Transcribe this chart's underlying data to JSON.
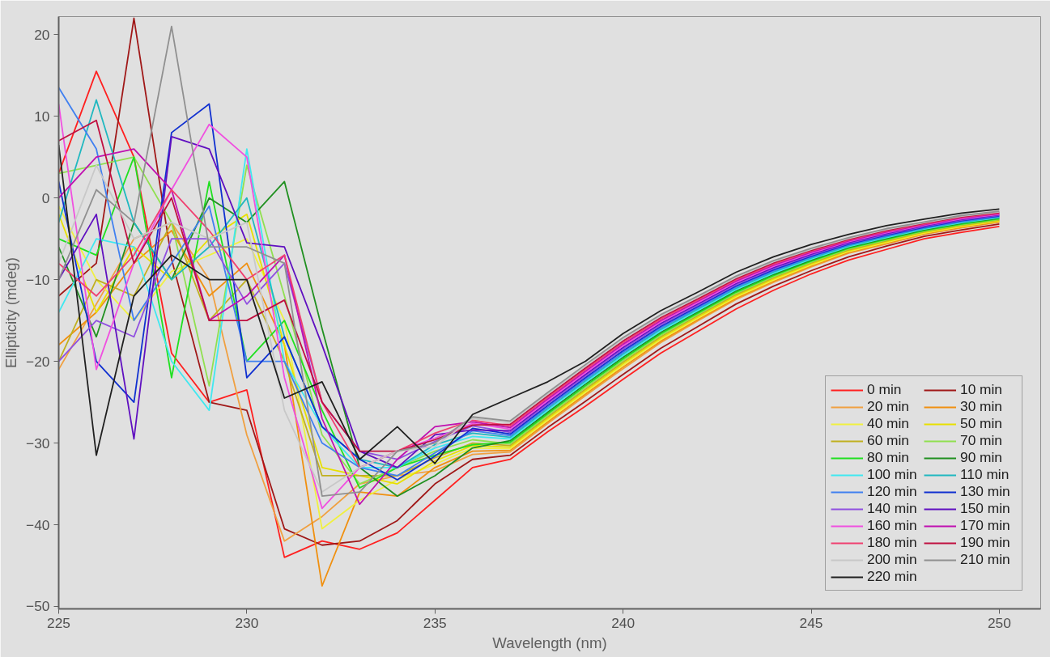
{
  "chart_data": {
    "type": "line",
    "xlabel": "Wavelength (nm)",
    "ylabel": "Ellipticity (mdeg)",
    "x": [
      225,
      226,
      227,
      228,
      229,
      230,
      231,
      232,
      233,
      234,
      235,
      236,
      237,
      238,
      239,
      240,
      241,
      242,
      243,
      244,
      245,
      246,
      247,
      248,
      249,
      250
    ],
    "xlim": [
      225,
      251.1
    ],
    "ylim": [
      -50.3,
      22.2
    ],
    "xticks": [
      225,
      230,
      235,
      240,
      245,
      250
    ],
    "yticks": [
      -50,
      -40,
      -30,
      -20,
      -10,
      0,
      10,
      20
    ],
    "grid": false,
    "legend": "bottom right",
    "line_style": "solid",
    "marker": "none",
    "series": [
      {
        "name": "0 min",
        "color": "#ff2020",
        "values": [
          3,
          15.5,
          5,
          -19,
          -25,
          -23.5,
          -44,
          -42,
          -43,
          -41,
          -37,
          -33,
          -32,
          -28.6,
          -25.5,
          -22.2,
          -19,
          -16.3,
          -13.6,
          -11.3,
          -9.3,
          -7.6,
          -6.3,
          -5,
          -4.2,
          -3.5
        ]
      },
      {
        "name": "10 min",
        "color": "#a01818",
        "values": [
          -12,
          -8,
          22,
          -7.5,
          -25,
          -26,
          -40.5,
          -42.5,
          -42,
          -39.5,
          -35,
          -32,
          -31.5,
          -28.1,
          -24.9,
          -21.6,
          -18.4,
          -15.7,
          -13,
          -10.8,
          -8.9,
          -7.2,
          -5.9,
          -4.7,
          -3.9,
          -3.2
        ]
      },
      {
        "name": "20 min",
        "color": "#f0a040",
        "values": [
          -21,
          -13,
          -5,
          -3,
          -10,
          -29,
          -42,
          -39,
          -35,
          -34,
          -33.4,
          -31.4,
          -31.1,
          -27.6,
          -24.2,
          -20.9,
          -17.71,
          -15.02,
          -12.43,
          -10.33,
          -8.44,
          -6.75,
          -5.65,
          -4.46,
          -3.66,
          -2.97
        ]
      },
      {
        "name": "30 min",
        "color": "#f09010",
        "values": [
          -18,
          -14,
          -8,
          -4,
          -12,
          -8,
          -18,
          -47.5,
          -36,
          -36.5,
          -33,
          -31,
          -30.9,
          -27.4,
          -24,
          -20.7,
          -17.53,
          -14.86,
          -12.28,
          -10.19,
          -8.32,
          -6.65,
          -5.55,
          -4.38,
          -3.58,
          -2.9
        ]
      },
      {
        "name": "40 min",
        "color": "#f0f040",
        "values": [
          -1,
          -10,
          -15,
          -9,
          -7,
          -5,
          -15,
          -40.5,
          -37,
          -34.5,
          -32.6,
          -30.6,
          -30.7,
          -27.2,
          -23.8,
          -20.5,
          -17.35,
          -14.7,
          -12.13,
          -10.05,
          -8.2,
          -6.55,
          -5.45,
          -4.3,
          -3.5,
          -2.83
        ]
      },
      {
        "name": "50 min",
        "color": "#e8e000",
        "values": [
          -2,
          -14,
          -6,
          -10,
          -5,
          -2,
          -18,
          -33,
          -34,
          -35,
          -32.2,
          -30.3,
          -30.5,
          -27,
          -23.6,
          -20.3,
          -17.17,
          -14.54,
          -11.98,
          -9.91,
          -8.08,
          -6.45,
          -5.35,
          -4.22,
          -3.42,
          -2.76
        ]
      },
      {
        "name": "60 min",
        "color": "#c0b020",
        "values": [
          -20,
          -10,
          -12,
          -3,
          -15,
          -10,
          -20,
          -34,
          -34,
          -34,
          -31.8,
          -30,
          -30.3,
          -26.8,
          -23.4,
          -20.1,
          -16.99,
          -14.38,
          -11.83,
          -9.77,
          -7.96,
          -6.35,
          -5.25,
          -4.14,
          -3.34,
          -2.69
        ]
      },
      {
        "name": "70 min",
        "color": "#90e050",
        "values": [
          3,
          4,
          5,
          -3,
          -23,
          4,
          -12,
          -29,
          -35,
          -33,
          -31,
          -29.6,
          -30.1,
          -26.6,
          -23.2,
          -19.9,
          -16.81,
          -14.22,
          -11.68,
          -9.63,
          -7.84,
          -6.25,
          -5.15,
          -4.06,
          -3.26,
          -2.62
        ]
      },
      {
        "name": "80 min",
        "color": "#20e020",
        "values": [
          -5,
          -7,
          5,
          -22,
          2,
          -20,
          -15,
          -26,
          -35.5,
          -33,
          -31.5,
          -30.2,
          -29.9,
          -26.4,
          -23,
          -19.7,
          -16.63,
          -14.06,
          -11.53,
          -9.49,
          -7.72,
          -6.15,
          -5.05,
          -3.98,
          -3.18,
          -2.55
        ]
      },
      {
        "name": "90 min",
        "color": "#209020",
        "values": [
          -6,
          -17,
          -3,
          -10,
          0,
          -3,
          2,
          -16,
          -33,
          -36.5,
          -34,
          -30.6,
          -29.7,
          -26.2,
          -22.8,
          -19.5,
          -16.45,
          -13.9,
          -11.38,
          -9.35,
          -7.6,
          -6.05,
          -4.95,
          -3.9,
          -3.1,
          -2.48
        ]
      },
      {
        "name": "100 min",
        "color": "#40e8f0",
        "values": [
          -14,
          -5,
          -6,
          -20,
          -26,
          6,
          -20,
          -28,
          -33,
          -33,
          -30.6,
          -29.2,
          -29.5,
          -26,
          -22.6,
          -19.3,
          -16.27,
          -13.74,
          -11.23,
          -9.21,
          -7.48,
          -5.95,
          -4.85,
          -3.82,
          -3.02,
          -2.41
        ]
      },
      {
        "name": "110 min",
        "color": "#20b8c0",
        "values": [
          -3,
          12,
          -3,
          -10,
          -6,
          0,
          -17,
          -28,
          -32,
          -33,
          -30.2,
          -28.8,
          -29.3,
          -25.8,
          -22.4,
          -19.1,
          -16.09,
          -13.58,
          -11.08,
          -9.07,
          -7.36,
          -5.85,
          -4.75,
          -3.74,
          -2.94,
          -2.34
        ]
      },
      {
        "name": "120 min",
        "color": "#4080f0",
        "values": [
          13.5,
          6,
          -15,
          -8,
          -1,
          -20,
          -20,
          -30,
          -33,
          -34,
          -31.2,
          -28.5,
          -29.1,
          -25.6,
          -22.2,
          -18.9,
          -15.91,
          -13.42,
          -10.93,
          -8.93,
          -7.24,
          -5.75,
          -4.65,
          -3.66,
          -2.86,
          -2.27
        ]
      },
      {
        "name": "130 min",
        "color": "#1030d0",
        "values": [
          2,
          -20,
          -25,
          8,
          11.5,
          -22,
          -17,
          -28,
          -32,
          -34.5,
          -31.6,
          -28.2,
          -28.9,
          -25.4,
          -22,
          -18.7,
          -15.73,
          -13.26,
          -10.78,
          -8.79,
          -7.12,
          -5.65,
          -4.55,
          -3.58,
          -2.78,
          -2.2
        ]
      },
      {
        "name": "140 min",
        "color": "#9050e0",
        "values": [
          -20,
          -15,
          -17,
          -5,
          -5,
          -13,
          -8,
          -25,
          -31,
          -32,
          -29.8,
          -27.9,
          -28.7,
          -25.2,
          -21.8,
          -18.5,
          -15.55,
          -13.1,
          -10.63,
          -8.65,
          -7,
          -5.55,
          -4.45,
          -3.5,
          -2.7,
          -2.13
        ]
      },
      {
        "name": "150 min",
        "color": "#6010c0",
        "values": [
          -10,
          -2,
          -29.5,
          7.5,
          6,
          -5.5,
          -6,
          -18,
          -31,
          -33,
          -29,
          -28.4,
          -28.5,
          -25,
          -21.6,
          -18.3,
          -15.37,
          -12.94,
          -10.48,
          -8.51,
          -6.88,
          -5.45,
          -4.35,
          -3.42,
          -2.62,
          -2.06
        ]
      },
      {
        "name": "160 min",
        "color": "#f050e0",
        "values": [
          11.5,
          -21,
          -8,
          1,
          9,
          5,
          -22,
          -38,
          -33,
          -31,
          -29.4,
          -27.6,
          -28.3,
          -24.8,
          -21.4,
          -18.1,
          -15.19,
          -12.78,
          -10.33,
          -8.37,
          -6.76,
          -5.35,
          -4.25,
          -3.34,
          -2.54,
          -1.99
        ]
      },
      {
        "name": "170 min",
        "color": "#c010b0",
        "values": [
          0,
          5,
          6,
          1,
          -15,
          -12,
          -7,
          -27,
          -37.5,
          -32,
          -28,
          -27.4,
          -28.1,
          -24.6,
          -21.2,
          -17.9,
          -15.01,
          -12.62,
          -10.18,
          -8.23,
          -6.64,
          -5.25,
          -4.15,
          -3.26,
          -2.46,
          -1.92
        ]
      },
      {
        "name": "180 min",
        "color": "#f04070",
        "values": [
          -8,
          -12,
          -7,
          1,
          -4,
          -10,
          -7,
          -25,
          -33,
          -31,
          -28.8,
          -27.2,
          -27.9,
          -24.4,
          -21,
          -17.7,
          -14.83,
          -12.46,
          -10.03,
          -8.09,
          -6.52,
          -5.15,
          -4.05,
          -3.18,
          -2.38,
          -1.85
        ]
      },
      {
        "name": "190 min",
        "color": "#c01040",
        "values": [
          7,
          9.5,
          -8,
          0,
          -15,
          -15,
          -12.5,
          -25,
          -31,
          -31,
          -29.6,
          -27.8,
          -27.7,
          -24.2,
          -20.8,
          -17.5,
          -14.65,
          -12.3,
          -9.88,
          -7.95,
          -6.4,
          -5.05,
          -3.95,
          -3.1,
          -2.3,
          -1.78
        ]
      },
      {
        "name": "200 min",
        "color": "#c8c8c8",
        "values": [
          -8,
          4,
          -5,
          -3,
          -5,
          -3,
          -26,
          -36,
          -33,
          -31,
          -30.4,
          -27,
          -27.5,
          -24,
          -20.6,
          -17.3,
          -14.47,
          -12.14,
          -9.73,
          -7.81,
          -6.28,
          -4.95,
          -3.85,
          -3.02,
          -2.22,
          -1.71
        ]
      },
      {
        "name": "210 min",
        "color": "#909090",
        "values": [
          -10,
          1,
          -3,
          21,
          -6,
          -6,
          -8,
          -36.5,
          -36,
          -31,
          -30,
          -26.8,
          -27.3,
          -23.8,
          -20.4,
          -17.1,
          -14.29,
          -11.98,
          -9.58,
          -7.67,
          -6.16,
          -4.85,
          -3.75,
          -2.94,
          -2.14,
          -1.64
        ]
      },
      {
        "name": "220 min",
        "color": "#202020",
        "values": [
          6.5,
          -31.5,
          -12,
          -7,
          -10,
          -10,
          -24.5,
          -22.5,
          -32,
          -28,
          -32.5,
          -26.5,
          -24.5,
          -22.5,
          -20,
          -16.6,
          -13.8,
          -11.5,
          -9.1,
          -7.2,
          -5.7,
          -4.45,
          -3.4,
          -2.6,
          -1.85,
          -1.35
        ]
      }
    ]
  }
}
